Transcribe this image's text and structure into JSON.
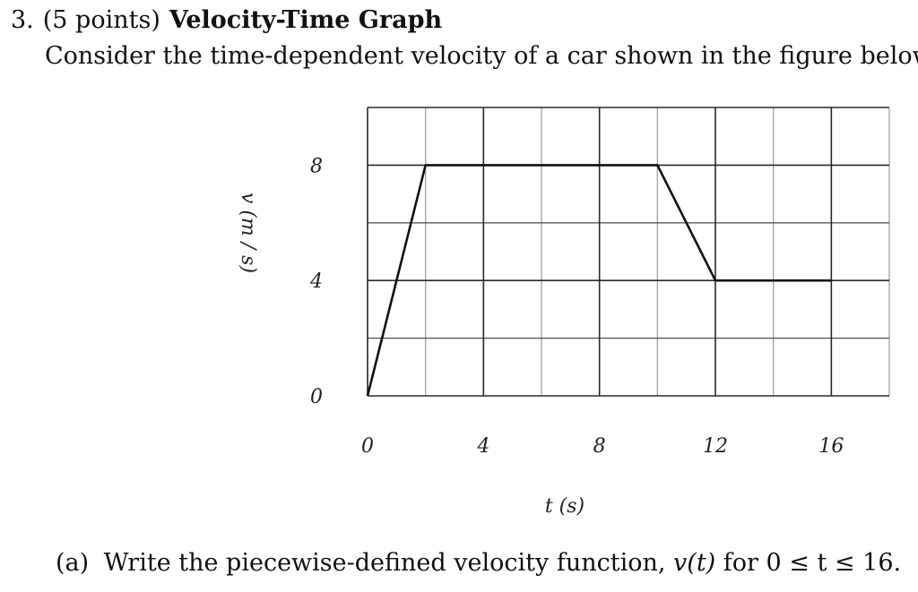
{
  "problem": {
    "number": "3.",
    "points": "(5 points)",
    "title": "Velocity-Time Graph",
    "intro": "Consider the time-dependent velocity of a car shown in the figure below."
  },
  "part_a": {
    "label": "(a)",
    "text_before": "Write the piecewise-defined velocity function,",
    "function": "v(t)",
    "text_after": "for 0 ≤ t ≤ 16."
  },
  "chart_data": {
    "type": "line",
    "title": "",
    "xlabel": "t (s)",
    "ylabel": "v (m / s)",
    "xlim": [
      0,
      18
    ],
    "ylim": [
      0,
      10
    ],
    "x_ticks": [
      0,
      4,
      8,
      12,
      16
    ],
    "y_ticks": [
      0,
      4,
      8
    ],
    "x_tick_labels": [
      "0",
      "4",
      "8",
      "12",
      "16"
    ],
    "y_tick_labels": [
      "0",
      "4",
      "8"
    ],
    "x_grid_step": 2,
    "y_grid_step": 2,
    "grid": true,
    "series": [
      {
        "x": [
          0,
          2,
          10,
          12,
          16
        ],
        "y": [
          0,
          8,
          8,
          4,
          4
        ]
      }
    ]
  }
}
